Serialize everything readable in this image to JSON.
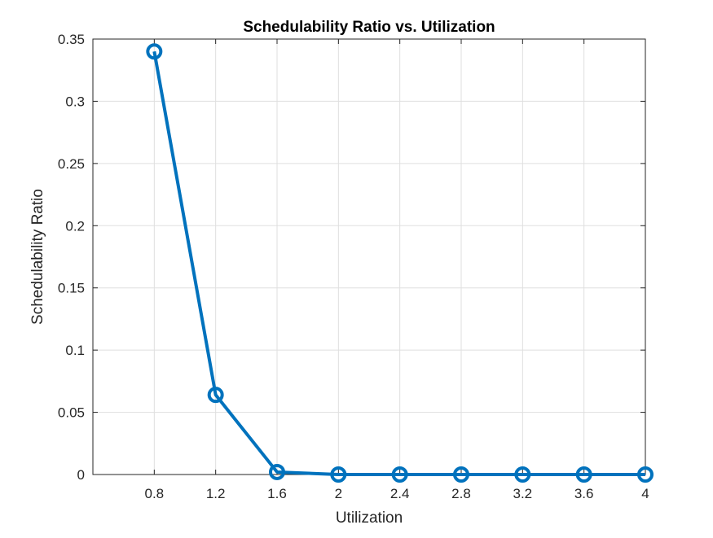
{
  "chart_data": {
    "type": "line",
    "title": "Schedulability Ratio vs. Utilization",
    "xlabel": "Utilization",
    "ylabel": "Schedulability Ratio",
    "x": [
      0.8,
      1.2,
      1.6,
      2,
      2.4,
      2.8,
      3.2,
      3.6,
      4
    ],
    "series": [
      {
        "values": [
          0.34,
          0.064,
          0.002,
          0,
          0,
          0,
          0,
          0,
          0
        ],
        "color": "#0072BD",
        "marker": "circle"
      }
    ],
    "xlim": [
      0.4,
      4
    ],
    "ylim": [
      0,
      0.35
    ],
    "xticks": [
      0.8,
      1.2,
      1.6,
      2,
      2.4,
      2.8,
      3.2,
      3.6,
      4
    ],
    "xtick_labels": [
      "0.8",
      "1.2",
      "1.6",
      "2",
      "2.4",
      "2.8",
      "3.2",
      "3.6",
      "4"
    ],
    "yticks": [
      0,
      0.05,
      0.1,
      0.15,
      0.2,
      0.25,
      0.3,
      0.35
    ],
    "ytick_labels": [
      "0",
      "0.05",
      "0.1",
      "0.15",
      "0.2",
      "0.25",
      "0.3",
      "0.35"
    ],
    "grid": true
  }
}
